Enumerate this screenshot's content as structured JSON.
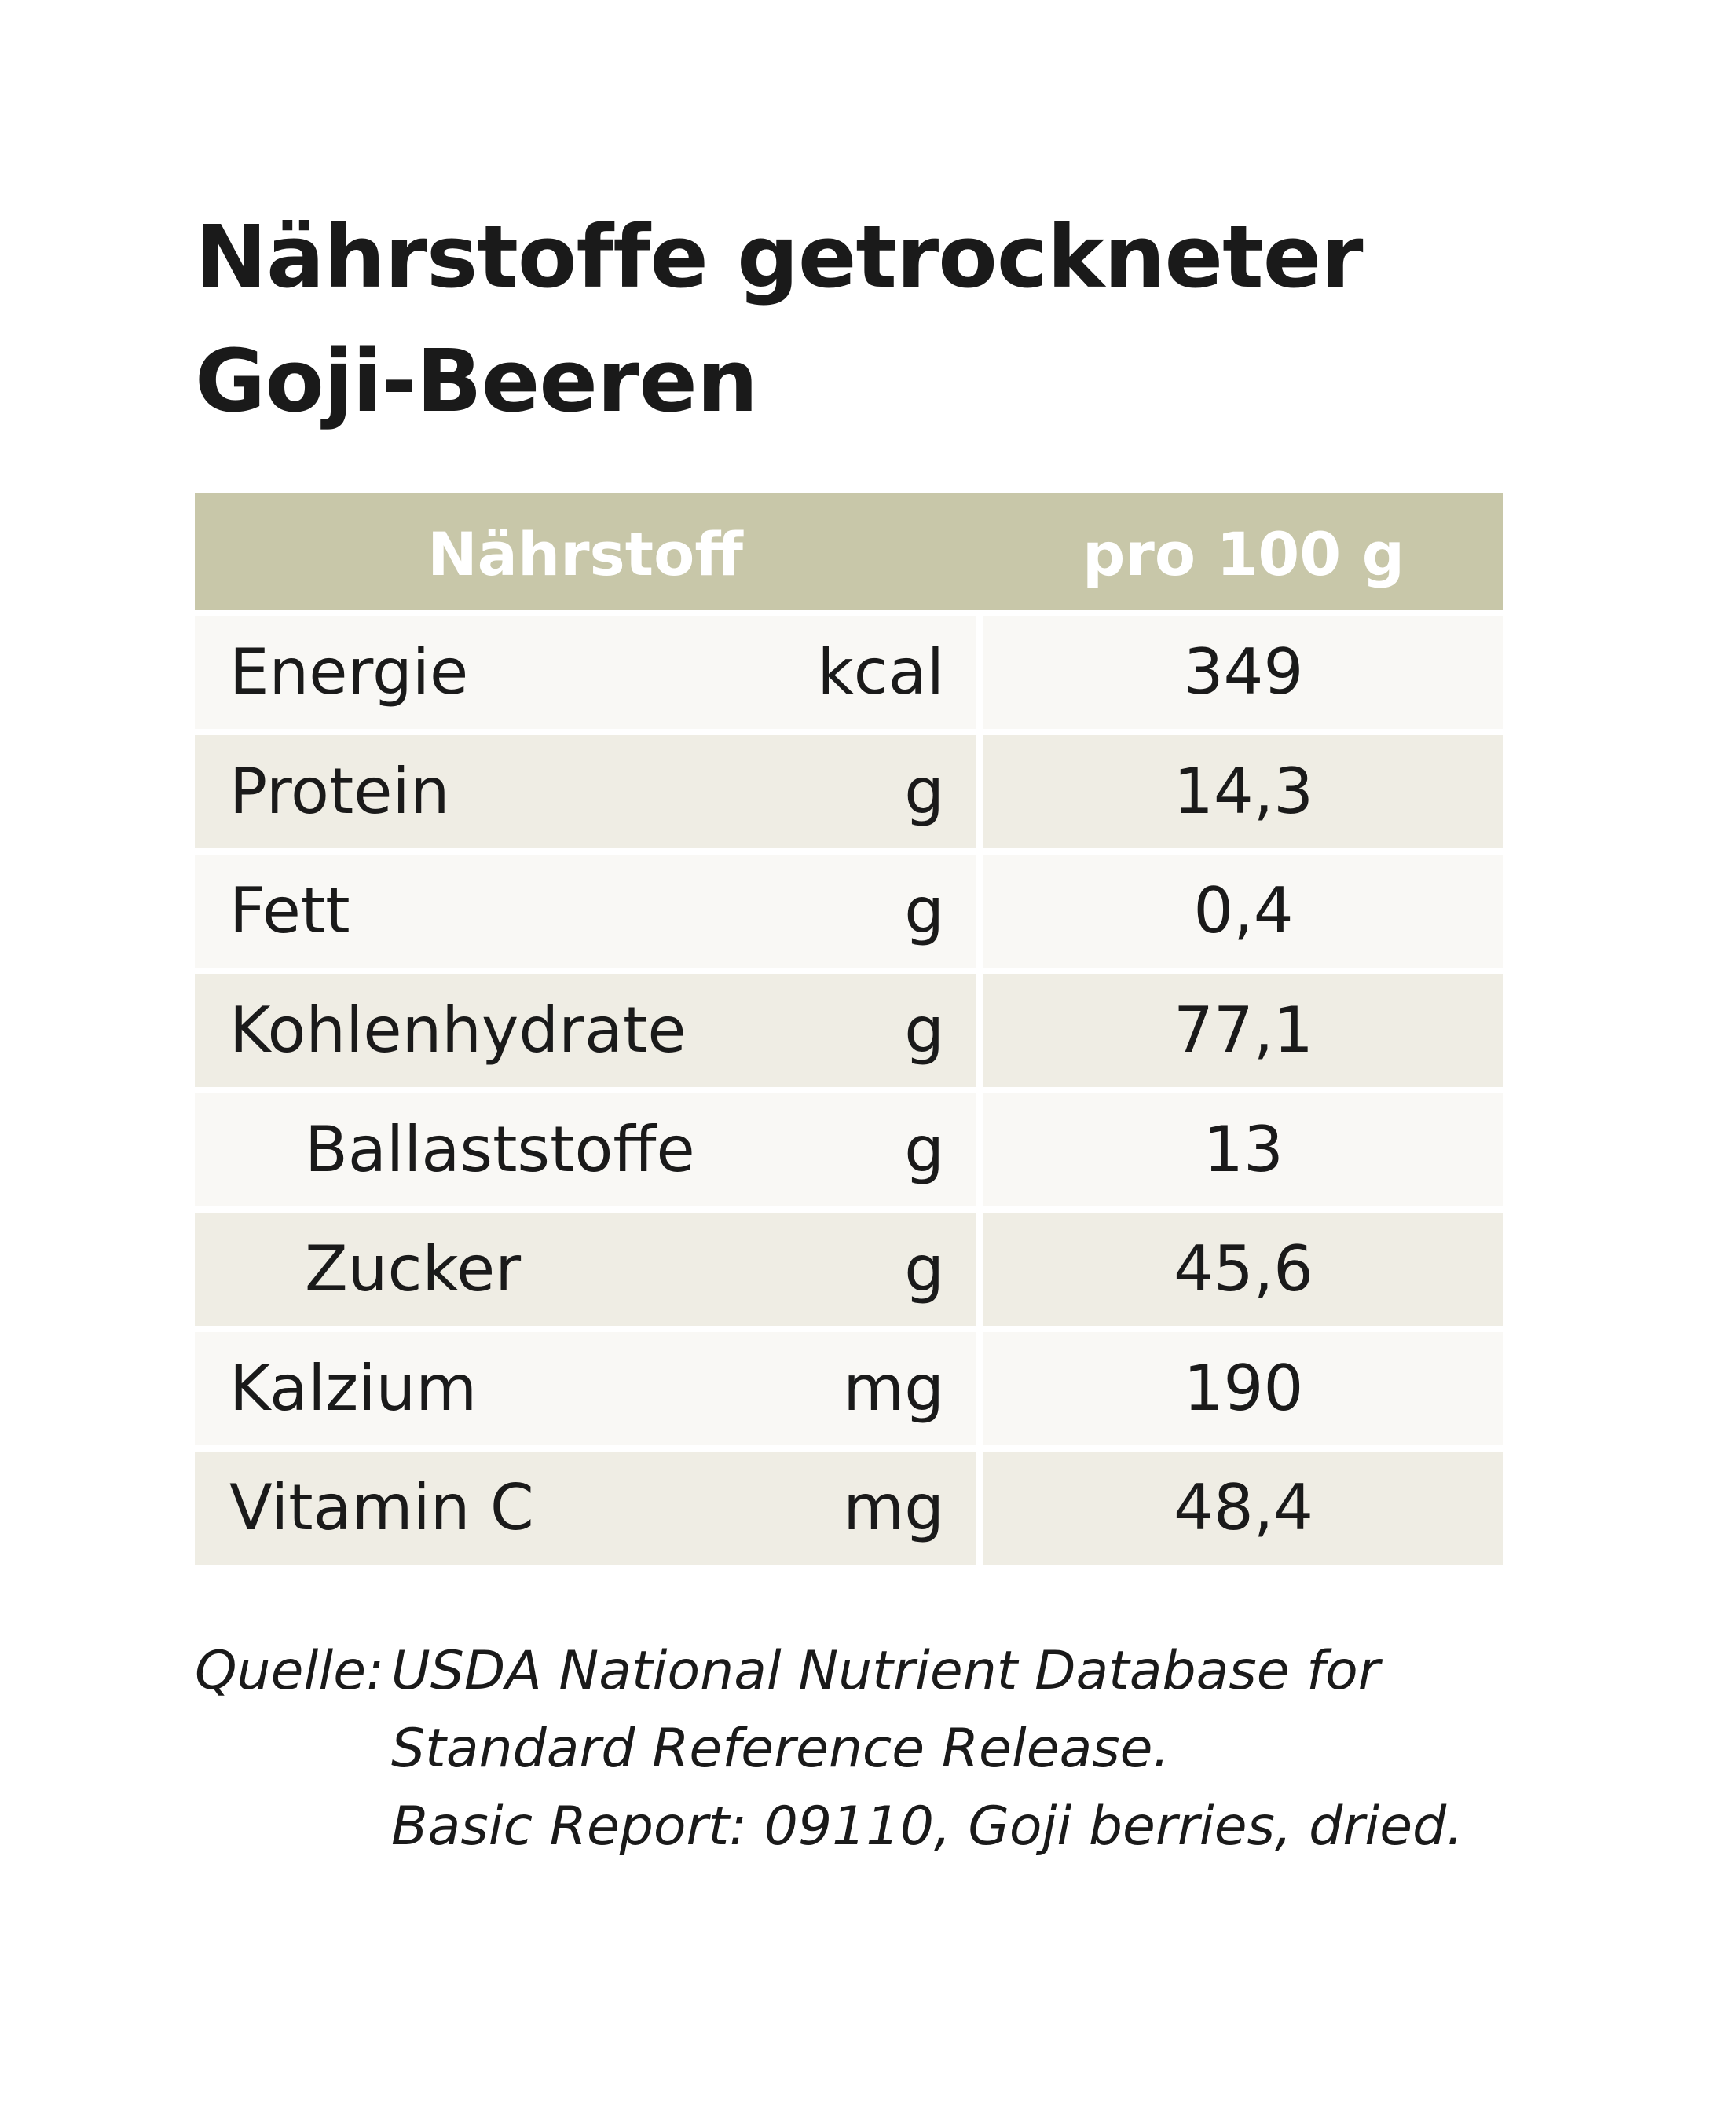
{
  "title": {
    "line1": "Nährstoffe getrockneter",
    "line2": "Goji-Beeren"
  },
  "table": {
    "headers": {
      "nutrient": "Nährstoff",
      "per100": "pro 100 g"
    },
    "rows": [
      {
        "name": "Energie",
        "unit": "kcal",
        "value": "349"
      },
      {
        "name": "Protein",
        "unit": "g",
        "value": "14,3"
      },
      {
        "name": "Fett",
        "unit": "g",
        "value": "0,4"
      },
      {
        "name": "Kohlenhydrate",
        "unit": "g",
        "value": "77,1"
      },
      {
        "name": "Ballaststoffe",
        "unit": "g",
        "value": "13"
      },
      {
        "name": "Zucker",
        "unit": "g",
        "value": "45,6"
      },
      {
        "name": "Kalzium",
        "unit": "mg",
        "value": "190"
      },
      {
        "name": "Vitamin C",
        "unit": "mg",
        "value": "48,4"
      }
    ]
  },
  "source": {
    "label": "Quelle:",
    "lines": [
      "USDA National Nutrient Database for",
      "Standard Reference Release.",
      "Basic Report: 09110, Goji berries, dried."
    ]
  },
  "colors": {
    "header_bg": "#c8c7a9",
    "row_light": "#f9f8f5",
    "row_dark": "#efede4",
    "text": "#1a1a1a"
  }
}
